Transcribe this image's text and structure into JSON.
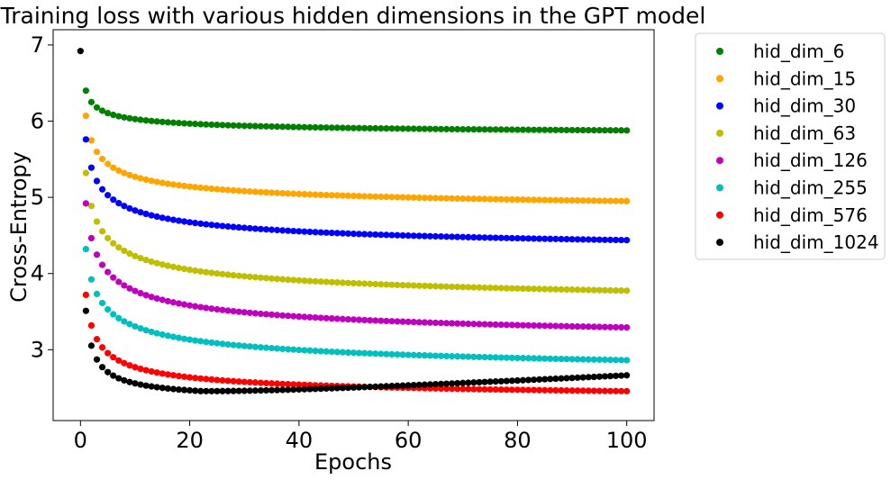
{
  "chart_data": {
    "type": "scatter",
    "title": "Training loss with various hidden dimensions in the GPT model",
    "xlabel": "Epochs",
    "ylabel": "Cross-Entropy",
    "xlim": [
      -5,
      105
    ],
    "ylim": [
      2.07,
      7.2
    ],
    "xticks": [
      0,
      20,
      40,
      60,
      80,
      100
    ],
    "yticks": [
      3,
      4,
      5,
      6,
      7
    ],
    "grid": false,
    "legend_position": "outside-right",
    "series": [
      {
        "name": "hid_dim_6",
        "color": "#008000",
        "x0": 1,
        "params": [
          5.78,
          0.62,
          0.4,
          0.0,
          0.0
        ],
        "first": null
      },
      {
        "name": "hid_dim_15",
        "color": "#ffa500",
        "x0": 1,
        "params": [
          4.74,
          1.33,
          0.4,
          0.0,
          0.0
        ],
        "first": null
      },
      {
        "name": "hid_dim_30",
        "color": "#0000ff",
        "x0": 1,
        "params": [
          4.16,
          1.6,
          0.38,
          0.0,
          0.0
        ],
        "first": null
      },
      {
        "name": "hid_dim_63",
        "color": "#bfbf00",
        "x0": 1,
        "params": [
          3.45,
          1.87,
          0.38,
          0.0,
          0.0
        ],
        "first": null
      },
      {
        "name": "hid_dim_126",
        "color": "#bf00bf",
        "x0": 1,
        "params": [
          2.95,
          1.97,
          0.38,
          0.0,
          0.0
        ],
        "first": null
      },
      {
        "name": "hid_dim_255",
        "color": "#00bfbf",
        "x0": 1,
        "params": [
          2.52,
          1.8,
          0.36,
          0.0,
          0.0
        ],
        "first": null
      },
      {
        "name": "hid_dim_576",
        "color": "#ff0000",
        "x0": 1,
        "params": [
          2.3,
          1.42,
          0.48,
          0.0,
          0.0
        ],
        "first": null
      },
      {
        "name": "hid_dim_1024",
        "color": "#000000",
        "x0": 1,
        "params": [
          2.32,
          1.19,
          0.7,
          0.0038,
          22
        ],
        "first": [
          0,
          6.92
        ]
      }
    ]
  }
}
